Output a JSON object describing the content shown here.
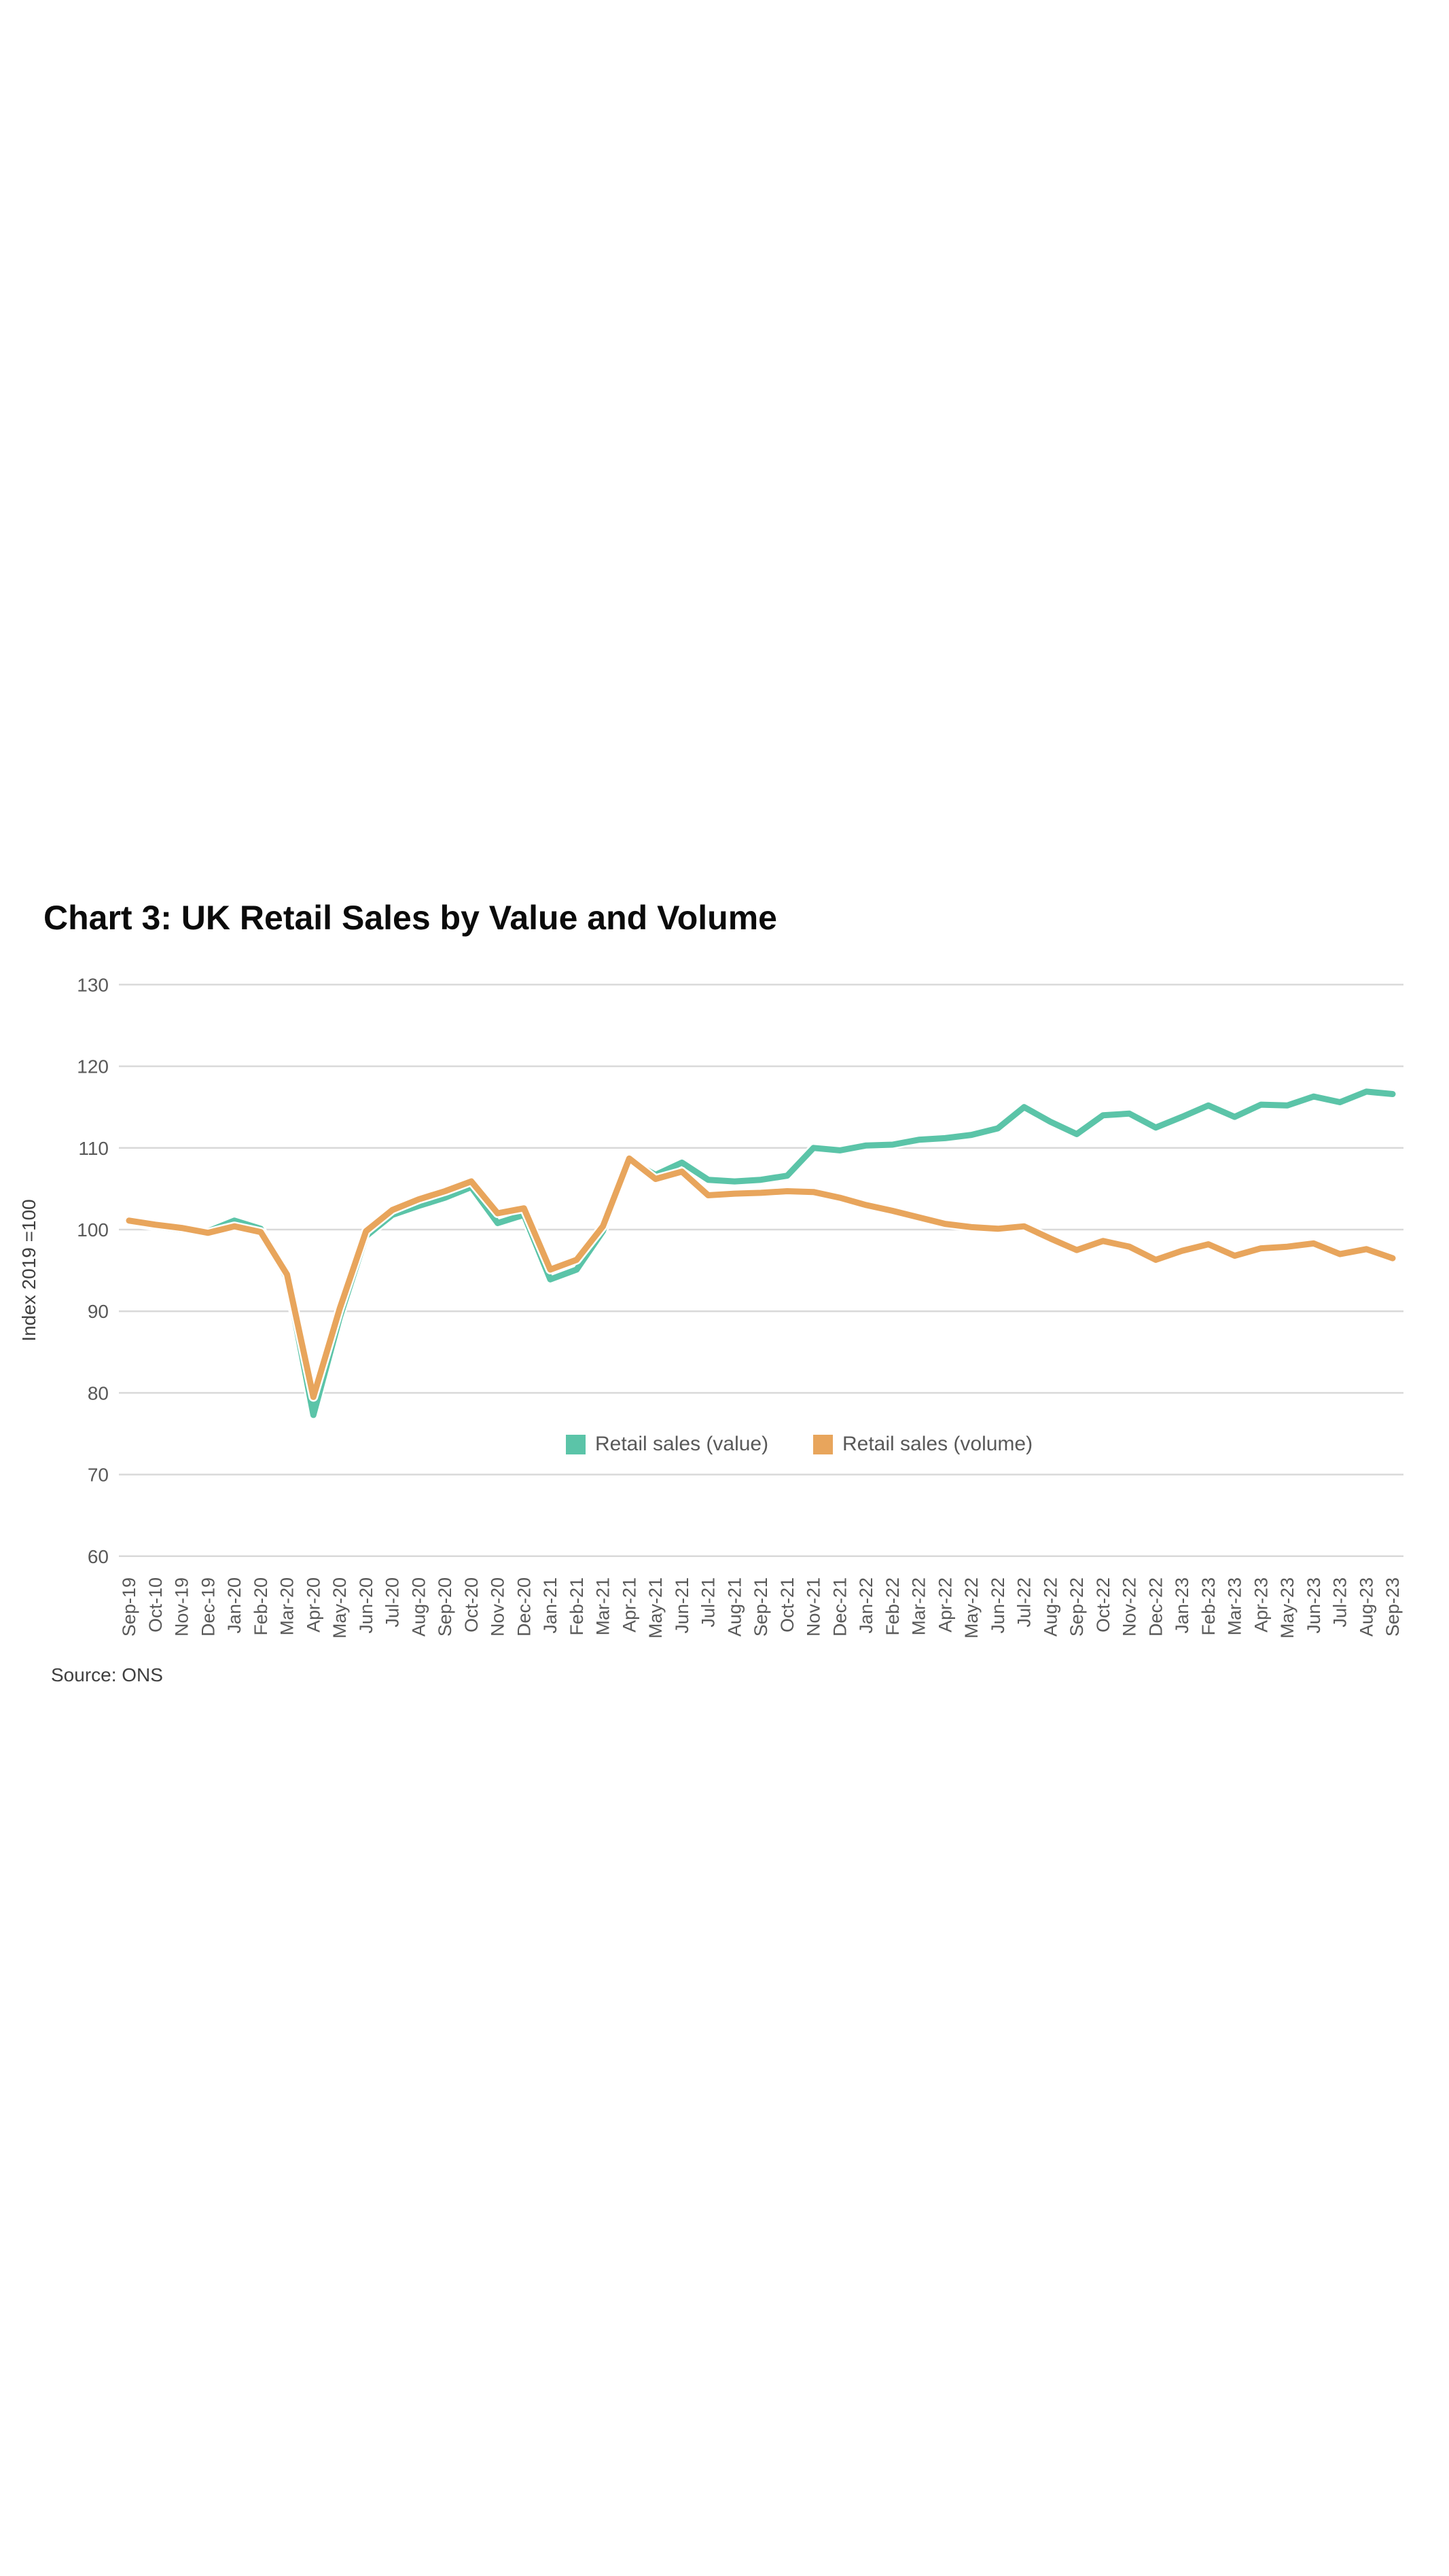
{
  "page": {
    "background_color": "#ffffff"
  },
  "chart": {
    "title": "Chart 3: UK Retail Sales by Value and Volume",
    "source": "Source: ONS"
  },
  "chart_data": {
    "type": "line",
    "title": "Chart 3: UK Retail Sales by Value and Volume",
    "xlabel": "",
    "ylabel": "Index 2019 =100",
    "ylim": [
      60,
      130
    ],
    "yticks": [
      130,
      120,
      110,
      100,
      90,
      80,
      70,
      60
    ],
    "grid": true,
    "grid_color": "#d9d9d9",
    "axis_text_color": "#595959",
    "legend_position": "inside-bottom-center",
    "source": "Source: ONS",
    "categories": [
      "Sep-19",
      "Oct-10",
      "Nov-19",
      "Dec-19",
      "Jan-20",
      "Feb-20",
      "Mar-20",
      "Apr-20",
      "May-20",
      "Jun-20",
      "Jul-20",
      "Aug-20",
      "Sep-20",
      "Oct-20",
      "Nov-20",
      "Dec-20",
      "Jan-21",
      "Feb-21",
      "Mar-21",
      "Apr-21",
      "May-21",
      "Jun-21",
      "Jul-21",
      "Aug-21",
      "Sep-21",
      "Oct-21",
      "Nov-21",
      "Dec-21",
      "Jan-22",
      "Feb-22",
      "Mar-22",
      "Apr-22",
      "May-22",
      "Jun-22",
      "Jul-22",
      "Aug-22",
      "Sep-22",
      "Oct-22",
      "Nov-22",
      "Dec-22",
      "Jan-23",
      "Feb-23",
      "Mar-23",
      "Apr-23",
      "May-23",
      "Jun-23",
      "Jul-23",
      "Aug-23",
      "Sep-23"
    ],
    "series": [
      {
        "name": "Retail sales (value)",
        "color": "#5bc4a8",
        "values": [
          100.9,
          100.4,
          100.0,
          99.8,
          101.1,
          100.1,
          94.0,
          77.3,
          89.2,
          99.2,
          101.8,
          102.9,
          103.9,
          105.2,
          100.8,
          101.8,
          93.9,
          95.1,
          99.8,
          108.5,
          106.7,
          108.2,
          106.1,
          105.9,
          106.1,
          106.6,
          110.0,
          109.7,
          110.3,
          110.4,
          111.0,
          111.2,
          111.6,
          112.4,
          115.0,
          113.2,
          111.7,
          114.0,
          114.2,
          112.5,
          113.8,
          115.2,
          113.8,
          115.3,
          115.2,
          116.3,
          115.6,
          116.9,
          116.6
        ]
      },
      {
        "name": "Retail sales (volume)",
        "color": "#e8a55c",
        "values": [
          101.1,
          100.6,
          100.2,
          99.6,
          100.4,
          99.7,
          94.5,
          79.5,
          90.3,
          99.8,
          102.4,
          103.7,
          104.7,
          105.9,
          102.0,
          102.6,
          95.1,
          96.3,
          100.4,
          108.7,
          106.2,
          107.1,
          104.2,
          104.4,
          104.5,
          104.7,
          104.6,
          103.9,
          103.0,
          102.3,
          101.5,
          100.7,
          100.3,
          100.1,
          100.4,
          98.9,
          97.5,
          98.6,
          97.9,
          96.3,
          97.4,
          98.2,
          96.8,
          97.7,
          97.9,
          98.3,
          97.0,
          97.6,
          96.5
        ]
      }
    ]
  }
}
